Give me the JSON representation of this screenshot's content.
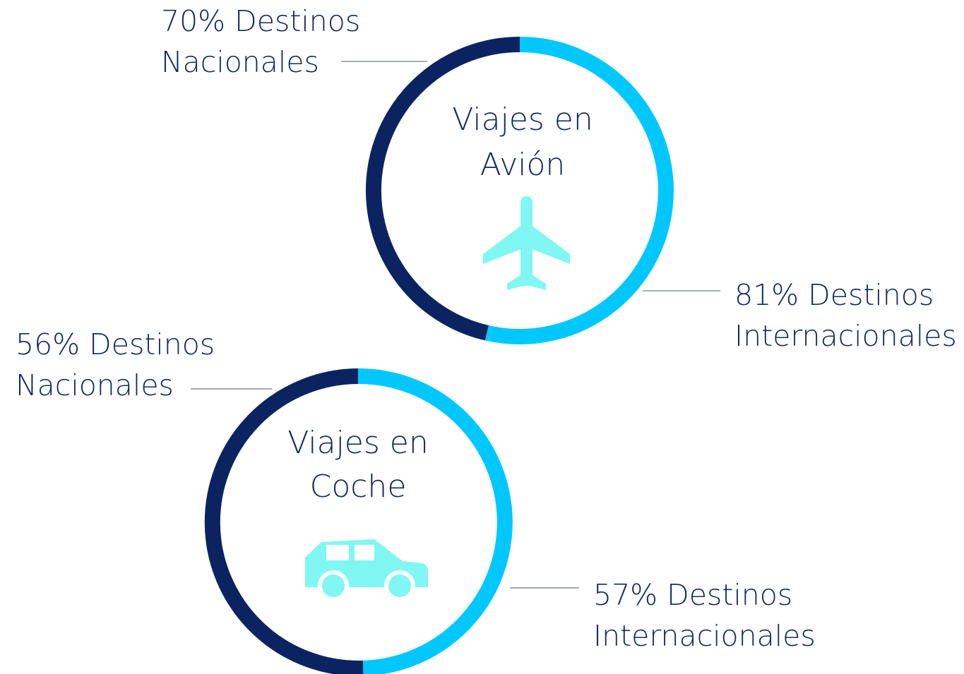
{
  "diagrams": [
    {
      "title": [
        "Viajes en",
        "Avión"
      ],
      "national": [
        "70% Destinos",
        "Nacionales"
      ],
      "international": [
        "81% Destinos",
        "Internacionales"
      ]
    },
    {
      "title": [
        "Viajes en",
        "Coche"
      ],
      "national": [
        "56% Destinos",
        "Nacionales"
      ],
      "international": [
        "57% Destinos",
        "Internacionales"
      ]
    }
  ]
}
